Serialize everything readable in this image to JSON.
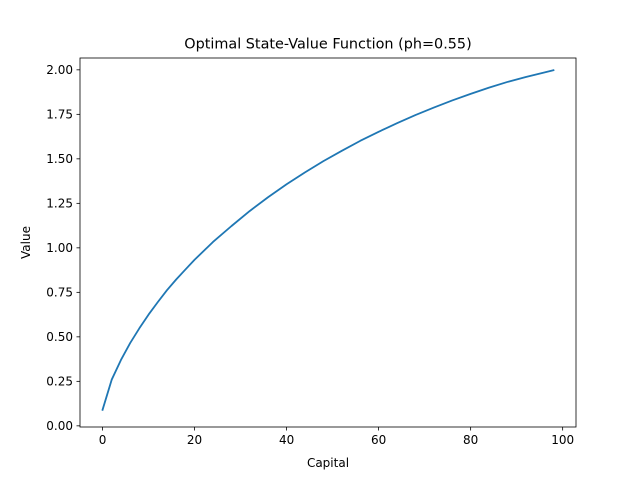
{
  "chart_data": {
    "type": "line",
    "title": "Optimal State-Value Function (ph=0.55)",
    "xlabel": "Capital",
    "ylabel": "Value",
    "xlim": [
      -4.9,
      102.9
    ],
    "ylim": [
      -0.0065,
      2.0665
    ],
    "x_ticks": [
      0,
      20,
      40,
      60,
      80,
      100
    ],
    "x_tick_labels": [
      "0",
      "20",
      "40",
      "60",
      "80",
      "100"
    ],
    "y_ticks": [
      0.0,
      0.25,
      0.5,
      0.75,
      1.0,
      1.25,
      1.5,
      1.75,
      2.0
    ],
    "y_tick_labels": [
      "0.00",
      "0.25",
      "0.50",
      "0.75",
      "1.00",
      "1.25",
      "1.50",
      "1.75",
      "2.00"
    ],
    "grid": false,
    "series": [
      {
        "color": "#1f77b4",
        "x": [
          0,
          2,
          4,
          6,
          8,
          10,
          12,
          14,
          16,
          18,
          20,
          24,
          28,
          32,
          36,
          40,
          44,
          48,
          52,
          56,
          60,
          64,
          68,
          72,
          76,
          80,
          84,
          88,
          92,
          96,
          98
        ],
        "y": [
          0.09,
          0.26,
          0.37,
          0.465,
          0.548,
          0.625,
          0.695,
          0.762,
          0.822,
          0.878,
          0.933,
          1.033,
          1.122,
          1.207,
          1.285,
          1.357,
          1.424,
          1.487,
          1.545,
          1.601,
          1.652,
          1.7,
          1.746,
          1.788,
          1.828,
          1.865,
          1.9,
          1.932,
          1.96,
          1.985,
          1.998
        ]
      }
    ]
  }
}
